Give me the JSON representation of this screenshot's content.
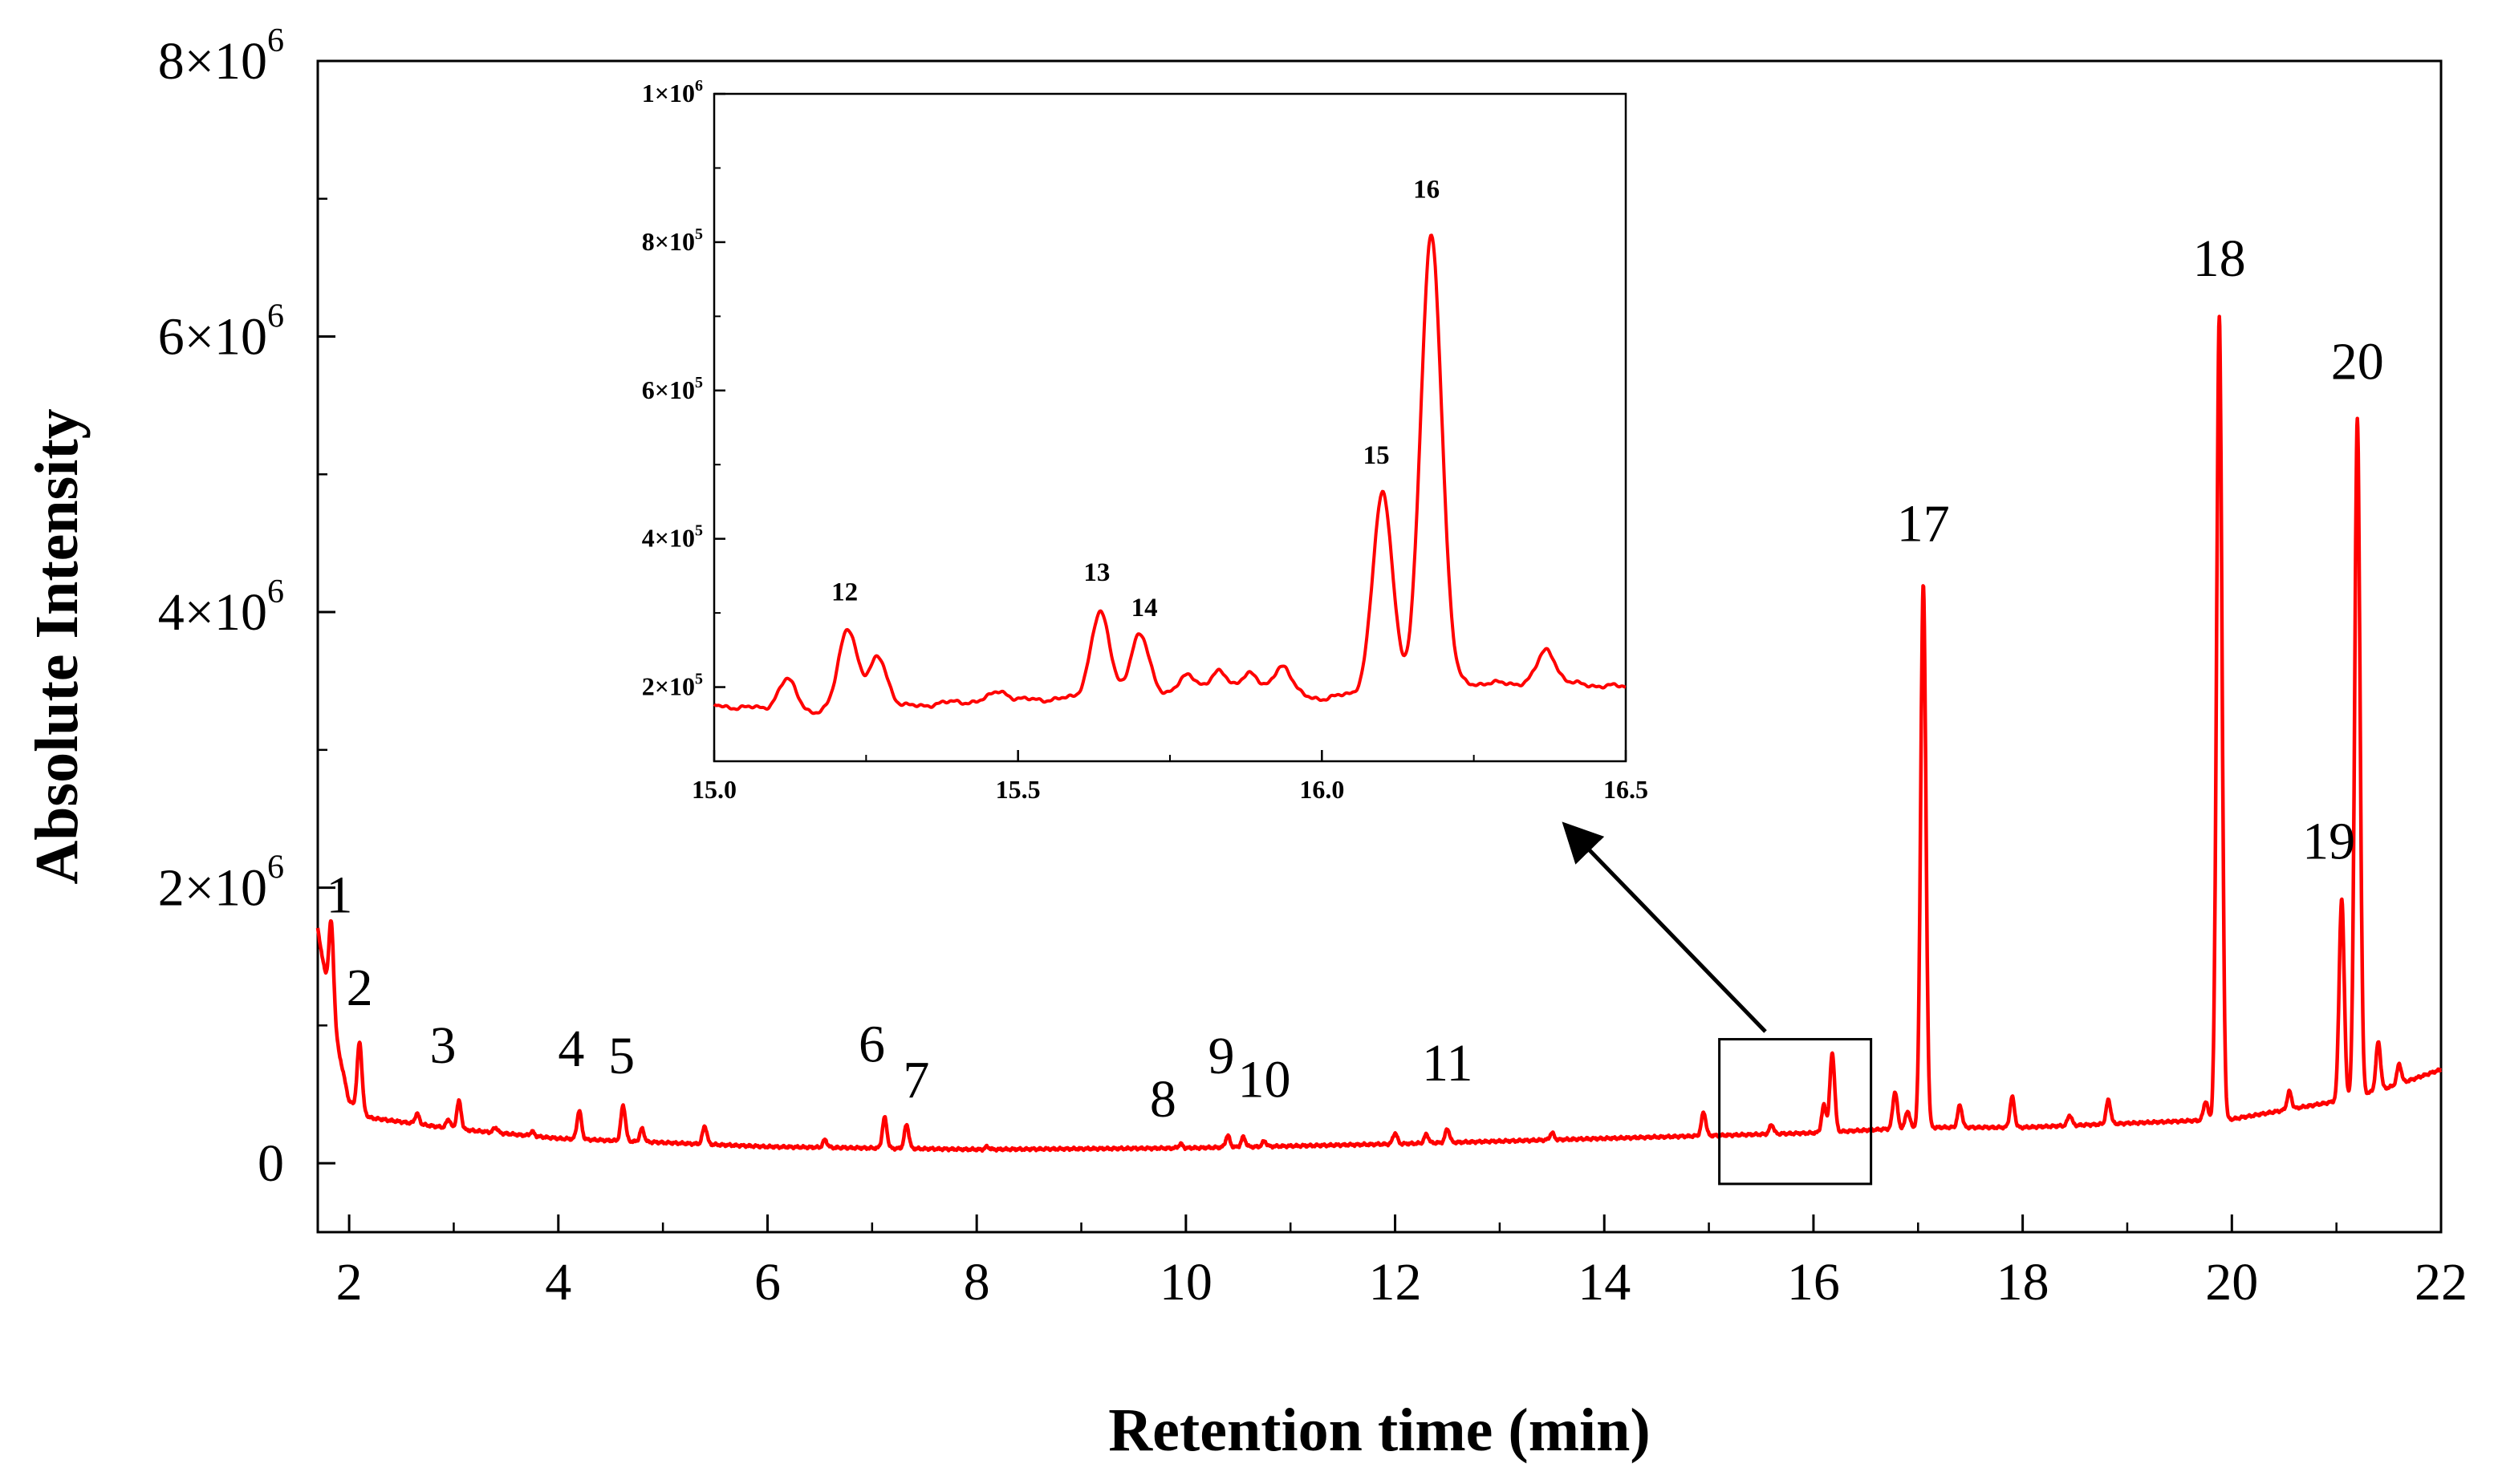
{
  "chart_data": [
    {
      "type": "line",
      "title": "",
      "xlabel": "Retention time (min)",
      "ylabel": "Absolute Intensity",
      "xlim": [
        1.7,
        22
      ],
      "ylim": [
        -500000,
        8000000
      ],
      "xticks": [
        2,
        4,
        6,
        8,
        10,
        12,
        14,
        16,
        18,
        20,
        22
      ],
      "xtick_labels": [
        "2",
        "4",
        "6",
        "8",
        "10",
        "12",
        "14",
        "16",
        "18",
        "20",
        "22"
      ],
      "yticks": [
        0,
        2000000,
        4000000,
        6000000,
        8000000
      ],
      "ytick_labels": [
        {
          "base": "0",
          "exp": ""
        },
        {
          "base": "2×10",
          "exp": "6"
        },
        {
          "base": "4×10",
          "exp": "6"
        },
        {
          "base": "6×10",
          "exp": "6"
        },
        {
          "base": "8×10",
          "exp": "6"
        }
      ],
      "color": "#ff0000",
      "grid": false,
      "baseline": [
        [
          1.7,
          1700000
        ],
        [
          1.85,
          1000000
        ],
        [
          2.0,
          450000
        ],
        [
          2.2,
          330000
        ],
        [
          3.0,
          250000
        ],
        [
          4.0,
          180000
        ],
        [
          6.0,
          120000
        ],
        [
          8.0,
          100000
        ],
        [
          10.0,
          110000
        ],
        [
          12.0,
          140000
        ],
        [
          14.0,
          180000
        ],
        [
          16.0,
          220000
        ],
        [
          17.0,
          260000
        ],
        [
          18.0,
          260000
        ],
        [
          19.0,
          290000
        ],
        [
          20.0,
          320000
        ],
        [
          21.0,
          450000
        ],
        [
          21.5,
          550000
        ],
        [
          22.0,
          680000
        ]
      ],
      "peaks": [
        {
          "label": "1",
          "rt": 1.83,
          "intensity": 1750000
        },
        {
          "label": "2",
          "rt": 2.1,
          "intensity": 880000
        },
        {
          "label": "3",
          "rt": 3.05,
          "intensity": 450000
        },
        {
          "label": "4",
          "rt": 4.2,
          "intensity": 380000
        },
        {
          "label": "5",
          "rt": 4.62,
          "intensity": 420000
        },
        {
          "label": "6",
          "rt": 7.12,
          "intensity": 330000
        },
        {
          "label": "7",
          "rt": 7.33,
          "intensity": 280000
        },
        {
          "label": "8",
          "rt": 9.95,
          "intensity": 140000
        },
        {
          "label": "9",
          "rt": 10.4,
          "intensity": 200000
        },
        {
          "label": "10",
          "rt": 10.55,
          "intensity": 190000
        },
        {
          "label": "11",
          "rt": 12.5,
          "intensity": 250000
        },
        {
          "label": "16",
          "rt": 16.18,
          "intensity": 800000
        },
        {
          "label": "17",
          "rt": 17.05,
          "intensity": 4200000
        },
        {
          "label": "18",
          "rt": 19.88,
          "intensity": 6150000
        },
        {
          "label": "19",
          "rt": 21.05,
          "intensity": 1920000
        },
        {
          "label": "20",
          "rt": 21.2,
          "intensity": 5400000
        }
      ],
      "minor_peaks": [
        {
          "rt": 2.65,
          "intensity": 360000
        },
        {
          "rt": 2.95,
          "intensity": 320000
        },
        {
          "rt": 3.4,
          "intensity": 260000
        },
        {
          "rt": 3.75,
          "intensity": 230000
        },
        {
          "rt": 4.8,
          "intensity": 250000
        },
        {
          "rt": 5.4,
          "intensity": 270000
        },
        {
          "rt": 6.55,
          "intensity": 170000
        },
        {
          "rt": 8.1,
          "intensity": 120000
        },
        {
          "rt": 10.75,
          "intensity": 160000
        },
        {
          "rt": 12.0,
          "intensity": 220000
        },
        {
          "rt": 12.3,
          "intensity": 210000
        },
        {
          "rt": 13.5,
          "intensity": 220000
        },
        {
          "rt": 14.95,
          "intensity": 370000
        },
        {
          "rt": 15.6,
          "intensity": 280000
        },
        {
          "rt": 16.1,
          "intensity": 420000
        },
        {
          "rt": 16.78,
          "intensity": 520000
        },
        {
          "rt": 16.9,
          "intensity": 380000
        },
        {
          "rt": 17.4,
          "intensity": 420000
        },
        {
          "rt": 17.9,
          "intensity": 480000
        },
        {
          "rt": 18.45,
          "intensity": 350000
        },
        {
          "rt": 18.82,
          "intensity": 460000
        },
        {
          "rt": 19.75,
          "intensity": 450000
        },
        {
          "rt": 20.55,
          "intensity": 520000
        },
        {
          "rt": 21.4,
          "intensity": 880000
        },
        {
          "rt": 21.6,
          "intensity": 720000
        }
      ],
      "zoom_region": {
        "x": [
          15.1,
          16.55
        ],
        "y": [
          -150000,
          900000
        ]
      }
    },
    {
      "type": "line",
      "title": "",
      "xlabel": "",
      "ylabel": "",
      "xlim": [
        15.0,
        16.5
      ],
      "ylim": [
        100000,
        1000000
      ],
      "xticks": [
        15.0,
        15.5,
        16.0,
        16.5
      ],
      "xtick_labels": [
        "15.0",
        "15.5",
        "16.0",
        "16.5"
      ],
      "yticks": [
        200000,
        400000,
        600000,
        800000,
        1000000
      ],
      "ytick_labels": [
        {
          "base": "2×10",
          "exp": "5"
        },
        {
          "base": "4×10",
          "exp": "5"
        },
        {
          "base": "6×10",
          "exp": "5"
        },
        {
          "base": "8×10",
          "exp": "5"
        },
        {
          "base": "1×10",
          "exp": "6"
        }
      ],
      "color": "#ff0000",
      "grid": false,
      "baseline": [
        [
          15.0,
          175000
        ],
        [
          15.2,
          165000
        ],
        [
          15.4,
          180000
        ],
        [
          15.6,
          185000
        ],
        [
          15.8,
          195000
        ],
        [
          16.0,
          185000
        ],
        [
          16.2,
          205000
        ],
        [
          16.4,
          205000
        ],
        [
          16.5,
          200000
        ]
      ],
      "peaks": [
        {
          "label": "12",
          "rt": 15.22,
          "intensity": 280000
        },
        {
          "label": "13",
          "rt": 15.635,
          "intensity": 300000
        },
        {
          "label": "14",
          "rt": 15.7,
          "intensity": 270000
        },
        {
          "label": "15",
          "rt": 16.1,
          "intensity": 460000
        },
        {
          "label": "16",
          "rt": 16.18,
          "intensity": 810000
        }
      ],
      "minor_peaks": [
        {
          "rt": 15.12,
          "intensity": 210000
        },
        {
          "rt": 15.27,
          "intensity": 240000
        },
        {
          "rt": 15.47,
          "intensity": 195000
        },
        {
          "rt": 15.78,
          "intensity": 215000
        },
        {
          "rt": 15.83,
          "intensity": 220000
        },
        {
          "rt": 15.88,
          "intensity": 220000
        },
        {
          "rt": 15.935,
          "intensity": 230000
        },
        {
          "rt": 16.37,
          "intensity": 250000
        }
      ]
    }
  ]
}
